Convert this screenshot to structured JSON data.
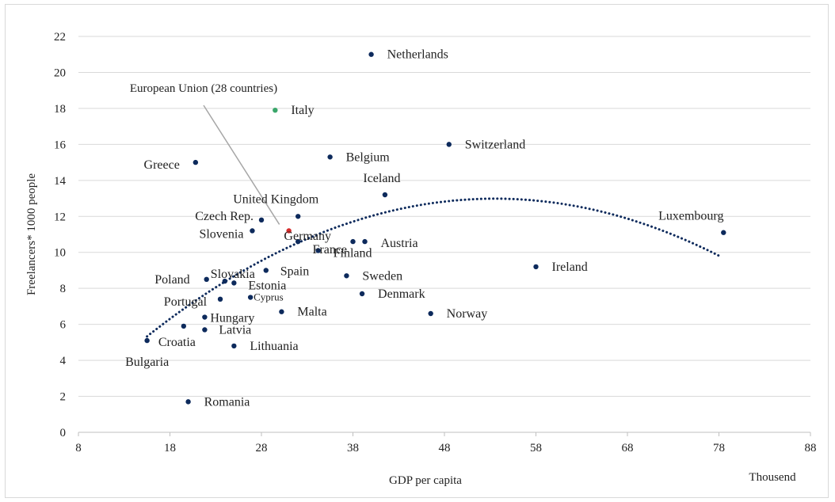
{
  "chart_data": {
    "type": "scatter",
    "title": "",
    "xlabel": "GDP per capita",
    "ylabel": "Freelancers* 1000 people",
    "x_unit_note": "Thousend",
    "xlim": [
      8,
      88
    ],
    "ylim": [
      0,
      22
    ],
    "x_ticks": [
      8,
      18,
      28,
      38,
      48,
      58,
      68,
      78,
      88
    ],
    "y_ticks": [
      0,
      2,
      4,
      6,
      8,
      10,
      12,
      14,
      16,
      18,
      20,
      22
    ],
    "grid": {
      "horizontal": true,
      "vertical": false
    },
    "colors": {
      "point": "#0d2a5c",
      "highlight_italy": "#3aa66a",
      "highlight_eu": "#d62b2b",
      "trendline": "#0d2a5c",
      "grid": "#d9d9d9",
      "leader_line": "#a6a6a6"
    },
    "trendline": {
      "type": "polynomial-2",
      "style": "dotted",
      "x_range": [
        15.5,
        78
      ]
    },
    "callout": {
      "text": "European Union (28 countries)",
      "target": "European Union (28 countries)"
    },
    "points": [
      {
        "name": "Netherlands",
        "x": 40,
        "y": 21.0
      },
      {
        "name": "Italy",
        "x": 29.5,
        "y": 17.9,
        "highlight": "italy"
      },
      {
        "name": "Switzerland",
        "x": 48.5,
        "y": 16.0
      },
      {
        "name": "Belgium",
        "x": 35.5,
        "y": 15.3
      },
      {
        "name": "Greece",
        "x": 20.8,
        "y": 15.0
      },
      {
        "name": "Iceland",
        "x": 41.5,
        "y": 13.2
      },
      {
        "name": "United Kingdom",
        "x": 32,
        "y": 12.0
      },
      {
        "name": "Czech Rep.",
        "x": 28,
        "y": 11.8
      },
      {
        "name": "Germany",
        "x": 32,
        "y": 10.6
      },
      {
        "name": "Slovenia",
        "x": 27,
        "y": 11.2
      },
      {
        "name": "Luxembourg",
        "x": 78.5,
        "y": 11.1
      },
      {
        "name": "European Union (28 countries)",
        "x": 31,
        "y": 11.2,
        "highlight": "eu",
        "label_hidden": true
      },
      {
        "name": "Austria",
        "x": 39.3,
        "y": 10.6
      },
      {
        "name": "Finland",
        "x": 34.2,
        "y": 10.1
      },
      {
        "name": "France",
        "x": 38,
        "y": 10.6
      },
      {
        "name": "Ireland",
        "x": 58,
        "y": 9.2
      },
      {
        "name": "Spain",
        "x": 28.5,
        "y": 9.0
      },
      {
        "name": "Sweden",
        "x": 37.3,
        "y": 8.7
      },
      {
        "name": "Slovakia",
        "x": 24,
        "y": 8.4
      },
      {
        "name": "Poland",
        "x": 22,
        "y": 8.5
      },
      {
        "name": "Estonia",
        "x": 25,
        "y": 8.3
      },
      {
        "name": "Denmark",
        "x": 39,
        "y": 7.7
      },
      {
        "name": "Cyprus",
        "x": 26.8,
        "y": 7.5
      },
      {
        "name": "Portugal",
        "x": 23.5,
        "y": 7.4
      },
      {
        "name": "Malta",
        "x": 30.2,
        "y": 6.7
      },
      {
        "name": "Norway",
        "x": 46.5,
        "y": 6.6
      },
      {
        "name": "Hungary",
        "x": 21.8,
        "y": 6.4
      },
      {
        "name": "Croatia",
        "x": 19.5,
        "y": 5.9
      },
      {
        "name": "Latvia",
        "x": 21.8,
        "y": 5.7
      },
      {
        "name": "Bulgaria",
        "x": 15.5,
        "y": 5.1
      },
      {
        "name": "Lithuania",
        "x": 25,
        "y": 4.8
      },
      {
        "name": "Romania",
        "x": 20,
        "y": 1.7
      }
    ]
  }
}
